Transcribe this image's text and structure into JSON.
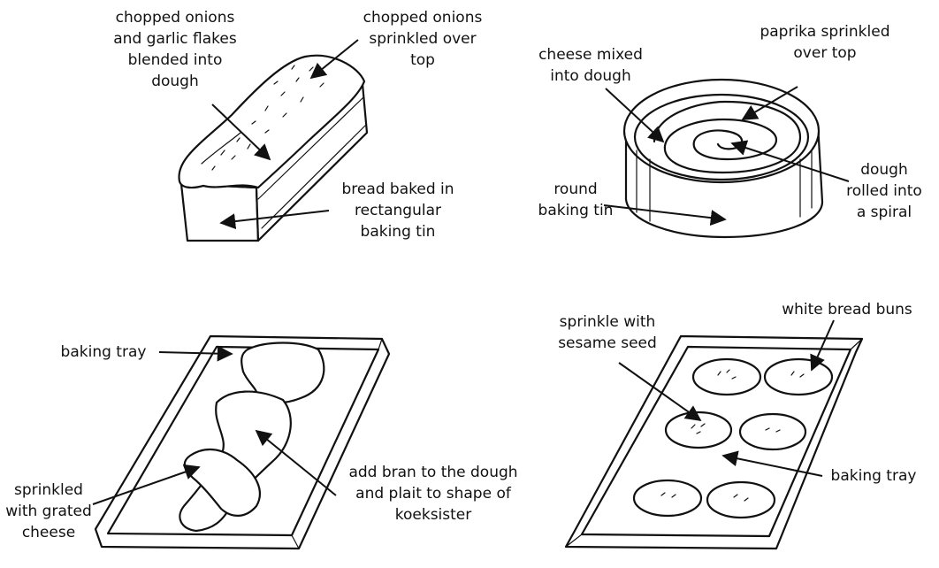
{
  "panels": {
    "loaf": {
      "label_inside": "chopped onions\nand garlic flakes\nblended into\ndough",
      "label_top": "chopped onions\nsprinkled over\ntop",
      "label_tin": "bread baked in\nrectangular\nbaking tin"
    },
    "spiral": {
      "label_cheese": "cheese mixed\ninto dough",
      "label_paprika": "paprika sprinkled\nover top",
      "label_spiral": "dough\nrolled into\na spiral",
      "label_tin": "round\nbaking tin"
    },
    "plait": {
      "label_tray": "baking tray",
      "label_cheese": "sprinkled\nwith grated\ncheese",
      "label_bran": "add bran to the dough\nand plait to shape of\nkoeksister"
    },
    "buns": {
      "label_buns": "white bread buns",
      "label_sesame": "sprinkle with\nsesame seed",
      "label_tray": "baking tray"
    }
  }
}
